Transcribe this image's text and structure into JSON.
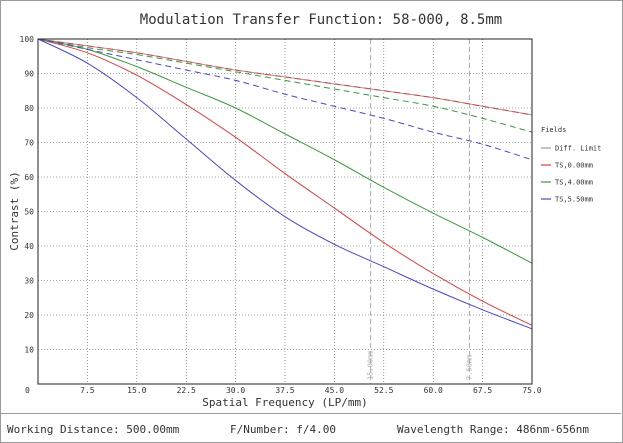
{
  "chart_data": {
    "type": "line",
    "title": "Modulation Transfer Function: 58-000, 8.5mm",
    "xlabel": "Spatial Frequency (LP/mm)",
    "ylabel": "Contrast (%)",
    "xlim": [
      0,
      75
    ],
    "ylim": [
      0,
      100
    ],
    "x_ticks": [
      "0",
      "7.5",
      "15.0",
      "22.5",
      "30.0",
      "37.5",
      "45.0",
      "52.5",
      "60.0",
      "67.5",
      "75.0"
    ],
    "y_ticks": [
      "0",
      "10",
      "20",
      "30",
      "40",
      "50",
      "60",
      "70",
      "80",
      "90",
      "100"
    ],
    "grid": true,
    "legend_title": "Fields",
    "legend_placement": "right",
    "x": [
      0,
      7.5,
      15,
      22.5,
      30,
      37.5,
      45,
      52.5,
      60,
      67.5,
      75
    ],
    "series": [
      {
        "name": "Diff. Limit",
        "color": "#999999",
        "dashed": false,
        "values": [
          100,
          98,
          96,
          93.5,
          91,
          89,
          87,
          85,
          83,
          80.5,
          78
        ]
      },
      {
        "name": "TS,0.00mm",
        "color": "#d84040",
        "dashed": false,
        "tangential": [
          100,
          96,
          89.5,
          81,
          71.5,
          61,
          51,
          41,
          32,
          24,
          17
        ],
        "values": [
          100,
          98,
          96,
          93.5,
          91,
          89,
          87,
          85,
          83,
          80.5,
          78
        ]
      },
      {
        "name": "TS,4.00mm",
        "color": "#3c983c",
        "dashed": false,
        "tangential": [
          100,
          97,
          92,
          86,
          80,
          72.5,
          65,
          57,
          49.5,
          42.5,
          35
        ],
        "values": [
          100,
          97.5,
          95.5,
          93,
          90.5,
          88,
          85.5,
          83,
          80.5,
          77,
          73
        ]
      },
      {
        "name": "TS,5.50mm",
        "color": "#4848c8",
        "dashed": false,
        "tangential": [
          100,
          93,
          83,
          71,
          59,
          48.5,
          40.5,
          34,
          27.5,
          21.5,
          16
        ],
        "values": [
          100,
          97,
          94,
          91,
          88,
          84,
          80.5,
          77,
          73,
          69.5,
          65
        ]
      }
    ],
    "markers": [
      {
        "label": "15.00mm",
        "x": 50.5
      },
      {
        "label": "7.50mm",
        "x": 65.5
      }
    ]
  },
  "footer": {
    "working_distance": "Working Distance: 500.00mm",
    "f_number": "F/Number: f/4.00",
    "wavelength": "Wavelength Range: 486nm-656nm"
  }
}
